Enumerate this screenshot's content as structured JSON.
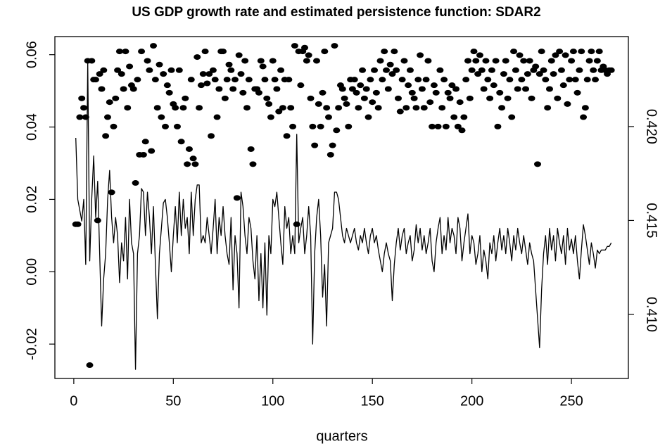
{
  "chart_data": {
    "type": "line",
    "title": "US GDP growth rate and estimated persistence function: SDAR2",
    "x_label": "quarters",
    "xlim": [
      -9.5,
      278.6
    ],
    "xticks": [
      0,
      50,
      100,
      150,
      200,
      250
    ],
    "ylim": [
      -0.0295,
      0.065
    ],
    "yticks": [
      {
        "value": -0.02,
        "label": "-0.02"
      },
      {
        "value": 0,
        "label": "0.00"
      },
      0.02,
      0.04,
      0.06
    ],
    "y2lim": [
      0.40659,
      0.42479
    ],
    "y2ticks": [
      {
        "value": 0.41,
        "label": "0.410"
      },
      0.415,
      {
        "value": 0.42,
        "label": "0.420"
      }
    ],
    "x": [
      1,
      2,
      3,
      4,
      5,
      6,
      7,
      8,
      9,
      10,
      11,
      12,
      13,
      14,
      15,
      16,
      17,
      18,
      19,
      20,
      21,
      22,
      23,
      24,
      25,
      26,
      27,
      28,
      29,
      30,
      31,
      32,
      33,
      34,
      35,
      36,
      37,
      38,
      39,
      40,
      41,
      42,
      43,
      44,
      45,
      46,
      47,
      48,
      49,
      50,
      51,
      52,
      53,
      54,
      55,
      56,
      57,
      58,
      59,
      60,
      61,
      62,
      63,
      64,
      65,
      66,
      67,
      68,
      69,
      70,
      71,
      72,
      73,
      74,
      75,
      76,
      77,
      78,
      79,
      80,
      81,
      82,
      83,
      84,
      85,
      86,
      87,
      88,
      89,
      90,
      91,
      92,
      93,
      94,
      95,
      96,
      97,
      98,
      99,
      100,
      101,
      102,
      103,
      104,
      105,
      106,
      107,
      108,
      109,
      110,
      111,
      112,
      113,
      114,
      115,
      116,
      117,
      118,
      119,
      120,
      121,
      122,
      123,
      124,
      125,
      126,
      127,
      128,
      129,
      130,
      131,
      132,
      133,
      134,
      135,
      136,
      137,
      138,
      139,
      140,
      141,
      142,
      143,
      144,
      145,
      146,
      147,
      148,
      149,
      150,
      151,
      152,
      153,
      154,
      155,
      156,
      157,
      158,
      159,
      160,
      161,
      162,
      163,
      164,
      165,
      166,
      167,
      168,
      169,
      170,
      171,
      172,
      173,
      174,
      175,
      176,
      177,
      178,
      179,
      180,
      181,
      182,
      183,
      184,
      185,
      186,
      187,
      188,
      189,
      190,
      191,
      192,
      193,
      194,
      195,
      196,
      197,
      198,
      199,
      200,
      201,
      202,
      203,
      204,
      205,
      206,
      207,
      208,
      209,
      210,
      211,
      212,
      213,
      214,
      215,
      216,
      217,
      218,
      219,
      220,
      221,
      222,
      223,
      224,
      225,
      226,
      227,
      228,
      229,
      230,
      231,
      232,
      233,
      234,
      235,
      236,
      237,
      238,
      239,
      240,
      241,
      242,
      243,
      244,
      245,
      246,
      247,
      248,
      249,
      250,
      251,
      252,
      253,
      254,
      255,
      256,
      257,
      258,
      259,
      260,
      261,
      262,
      263,
      264,
      265,
      266,
      267,
      268,
      269,
      270
    ],
    "series": [
      {
        "type": "line",
        "axis": "y",
        "color": "#000000",
        "values": [
          0.037,
          0.02,
          0.017,
          0.014,
          0.02,
          0.002,
          0.058,
          0.003,
          0.02,
          0.032,
          0.015,
          0.025,
          0.005,
          -0.015,
          -0.002,
          0.005,
          0.02,
          0.028,
          0.015,
          0.008,
          0.015,
          0.01,
          -0.003,
          0.008,
          0.003,
          0.015,
          -0.002,
          0.02,
          0.008,
          0.005,
          -0.027,
          0.005,
          0.01,
          0.023,
          0.022,
          0.01,
          0.022,
          0.015,
          0.005,
          0.018,
          0.002,
          -0.013,
          0.005,
          0.012,
          0.019,
          0.02,
          0.015,
          0.008,
          0.0,
          0.01,
          0.018,
          0.008,
          0.022,
          0.01,
          0.02,
          0.012,
          0.015,
          0.005,
          0.022,
          0.01,
          0.02,
          0.024,
          0.024,
          0.008,
          0.01,
          0.008,
          0.015,
          0.01,
          0.005,
          0.012,
          0.02,
          0.005,
          0.015,
          0.01,
          0.018,
          0.01,
          0.005,
          0.002,
          0.015,
          -0.005,
          0.01,
          0.005,
          -0.01,
          0.022,
          0.018,
          0.01,
          0.005,
          0.015,
          0.012,
          0.003,
          -0.002,
          0.01,
          -0.008,
          0.005,
          -0.01,
          0.008,
          -0.012,
          0.01,
          0.005,
          0.02,
          0.018,
          0.022,
          0.015,
          0.008,
          0.002,
          0.018,
          0.012,
          0.015,
          0.005,
          0.01,
          0.005,
          0.038,
          0.008,
          0.012,
          0.015,
          0.005,
          0.01,
          0.018,
          0.01,
          -0.02,
          0.005,
          0.015,
          0.02,
          0.01,
          -0.007,
          0.002,
          -0.015,
          0.008,
          0.01,
          0.012,
          0.022,
          0.022,
          0.02,
          0.015,
          0.01,
          0.008,
          0.012,
          0.01,
          0.008,
          0.01,
          0.012,
          0.008,
          0.006,
          0.01,
          0.008,
          0.012,
          0.008,
          0.005,
          0.01,
          0.012,
          0.008,
          0.01,
          0.006,
          0.003,
          0.0,
          0.005,
          0.008,
          0.005,
          0.003,
          -0.008,
          0.002,
          0.008,
          0.012,
          0.006,
          0.01,
          0.012,
          0.005,
          0.008,
          0.01,
          0.003,
          0.006,
          0.013,
          0.008,
          0.012,
          0.006,
          0.01,
          0.005,
          0.008,
          0.012,
          0.003,
          0.0,
          0.008,
          0.012,
          0.015,
          0.005,
          0.01,
          0.006,
          0.015,
          0.008,
          0.012,
          0.01,
          0.005,
          0.015,
          0.012,
          0.003,
          0.008,
          0.012,
          0.016,
          0.005,
          0.01,
          0.008,
          0.002,
          0.005,
          0.01,
          0.0,
          0.006,
          0.003,
          -0.002,
          0.008,
          0.005,
          0.01,
          0.003,
          0.008,
          0.012,
          0.006,
          0.01,
          0.005,
          0.012,
          0.008,
          0.003,
          0.01,
          0.006,
          0.012,
          0.008,
          0.005,
          0.01,
          0.006,
          0.002,
          0.008,
          0.005,
          0.003,
          -0.005,
          -0.013,
          -0.021,
          -0.005,
          0.005,
          0.01,
          0.002,
          0.012,
          0.006,
          0.01,
          0.003,
          0.012,
          0.008,
          0.005,
          0.01,
          0.002,
          0.012,
          0.006,
          0.009,
          0.005,
          0.01,
          0.003,
          -0.002,
          0.006,
          0.013,
          0.01,
          0.006,
          0.002,
          0.008,
          0.005,
          0.001,
          0.006,
          0.005,
          0.006,
          0.006,
          0.006,
          0.007,
          0.007,
          0.008
        ]
      },
      {
        "type": "scatter",
        "axis": "y2",
        "color": "#000000",
        "values": [
          0.4148,
          0.4148,
          0.4205,
          0.4215,
          0.421,
          0.4205,
          0.4235,
          0.4073,
          0.4235,
          0.4225,
          0.4225,
          0.415,
          0.4228,
          0.422,
          0.423,
          0.4195,
          0.4205,
          0.4213,
          0.4165,
          0.42,
          0.4215,
          0.423,
          0.424,
          0.4228,
          0.422,
          0.424,
          0.421,
          0.4232,
          0.4222,
          0.422,
          0.417,
          0.4225,
          0.4185,
          0.424,
          0.4185,
          0.4192,
          0.4235,
          0.423,
          0.4187,
          0.4243,
          0.4225,
          0.421,
          0.4233,
          0.4205,
          0.4228,
          0.42,
          0.4222,
          0.4218,
          0.423,
          0.4212,
          0.421,
          0.42,
          0.423,
          0.4192,
          0.421,
          0.4215,
          0.418,
          0.4188,
          0.4225,
          0.4183,
          0.418,
          0.4237,
          0.421,
          0.4222,
          0.4228,
          0.424,
          0.4223,
          0.4228,
          0.4195,
          0.423,
          0.4225,
          0.4205,
          0.422,
          0.424,
          0.424,
          0.4215,
          0.4225,
          0.4233,
          0.423,
          0.422,
          0.4225,
          0.4162,
          0.4238,
          0.4228,
          0.4218,
          0.4235,
          0.421,
          0.4225,
          0.4188,
          0.418,
          0.422,
          0.422,
          0.4218,
          0.4235,
          0.4232,
          0.4225,
          0.4215,
          0.4212,
          0.4205,
          0.4235,
          0.4225,
          0.422,
          0.4208,
          0.423,
          0.421,
          0.4225,
          0.4195,
          0.4225,
          0.421,
          0.42,
          0.4243,
          0.4148,
          0.424,
          0.4222,
          0.424,
          0.4242,
          0.4235,
          0.4238,
          0.4215,
          0.42,
          0.419,
          0.4235,
          0.4212,
          0.42,
          0.4218,
          0.424,
          0.421,
          0.4205,
          0.4185,
          0.419,
          0.4243,
          0.4198,
          0.421,
          0.4222,
          0.422,
          0.4215,
          0.4212,
          0.42,
          0.4225,
          0.422,
          0.4225,
          0.4218,
          0.421,
          0.4222,
          0.423,
          0.4215,
          0.422,
          0.4205,
          0.4225,
          0.4213,
          0.423,
          0.4218,
          0.421,
          0.4235,
          0.4225,
          0.424,
          0.423,
          0.422,
          0.4233,
          0.4228,
          0.424,
          0.423,
          0.4215,
          0.4208,
          0.4225,
          0.4235,
          0.421,
          0.4222,
          0.423,
          0.4218,
          0.4215,
          0.421,
          0.4225,
          0.4238,
          0.422,
          0.421,
          0.4225,
          0.4235,
          0.4213,
          0.42,
          0.4222,
          0.4218,
          0.42,
          0.423,
          0.421,
          0.4225,
          0.42,
          0.4218,
          0.4215,
          0.4222,
          0.4205,
          0.422,
          0.42,
          0.4213,
          0.4198,
          0.4205,
          0.4225,
          0.4235,
          0.4215,
          0.423,
          0.424,
          0.4235,
          0.4228,
          0.4238,
          0.423,
          0.422,
          0.4235,
          0.4225,
          0.4215,
          0.423,
          0.4222,
          0.4235,
          0.42,
          0.4218,
          0.421,
          0.4228,
          0.4235,
          0.4215,
          0.4225,
          0.4205,
          0.424,
          0.423,
          0.422,
          0.4238,
          0.4225,
          0.4235,
          0.422,
          0.4228,
          0.4235,
          0.4215,
          0.423,
          0.4232,
          0.418,
          0.4228,
          0.424,
          0.423,
          0.4225,
          0.421,
          0.422,
          0.4235,
          0.4228,
          0.4238,
          0.4215,
          0.424,
          0.423,
          0.4222,
          0.4238,
          0.4212,
          0.4225,
          0.4235,
          0.424,
          0.4225,
          0.4218,
          0.423,
          0.424,
          0.4205,
          0.421,
          0.4225,
          0.4235,
          0.424,
          0.423,
          0.4225,
          0.4235,
          0.424,
          0.423,
          0.4232,
          0.423,
          0.4228,
          0.423,
          0.423
        ]
      }
    ]
  }
}
